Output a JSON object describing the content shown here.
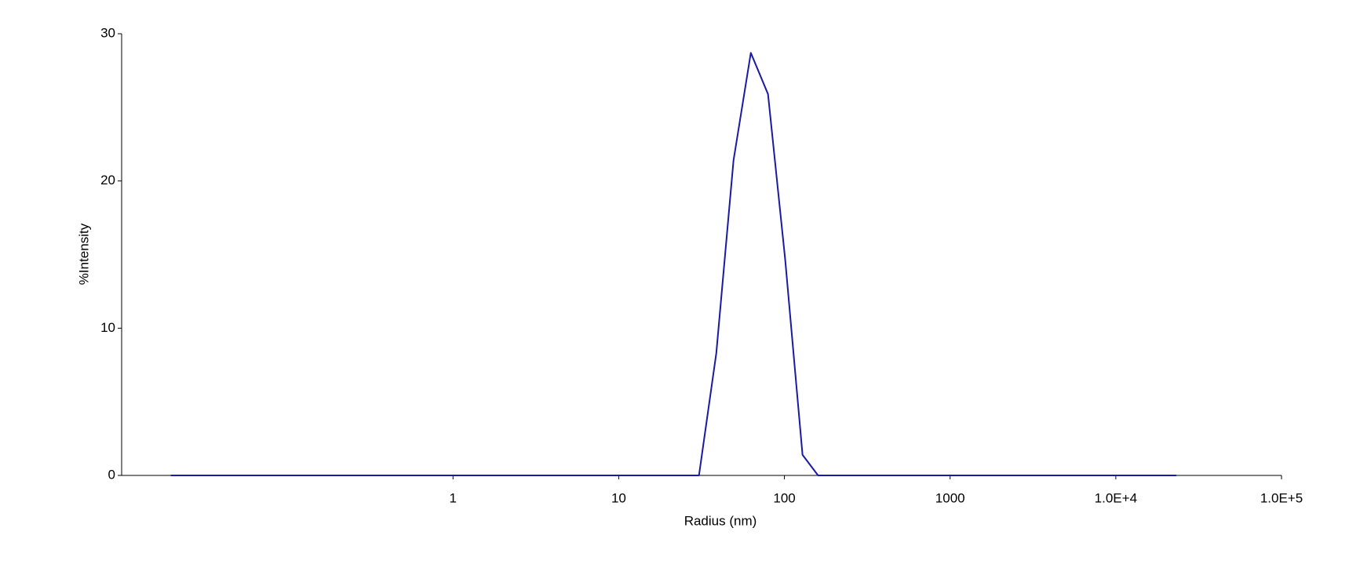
{
  "chart_data": {
    "type": "line",
    "xlabel": "Radius (nm)",
    "ylabel": "%Intensity",
    "x": [
      0.0198,
      30.5,
      38.8,
      49.3,
      62.7,
      79.6,
      101,
      128.6,
      159.6,
      23170
    ],
    "values": [
      0,
      0,
      8.3,
      21.4,
      28.7,
      25.9,
      14.7,
      1.4,
      0,
      0
    ],
    "color": "#1a1aa6",
    "xscale": "log",
    "xlim": [
      0.01,
      100000
    ],
    "xticks": [
      1,
      10,
      100,
      1000,
      {
        "value": 10000,
        "label": "1.0E+4"
      },
      {
        "value": 100000,
        "label": "1.0E+5"
      }
    ],
    "ylim": [
      0,
      30
    ],
    "yticks": [
      0,
      10,
      20,
      30
    ],
    "grid": false
  }
}
